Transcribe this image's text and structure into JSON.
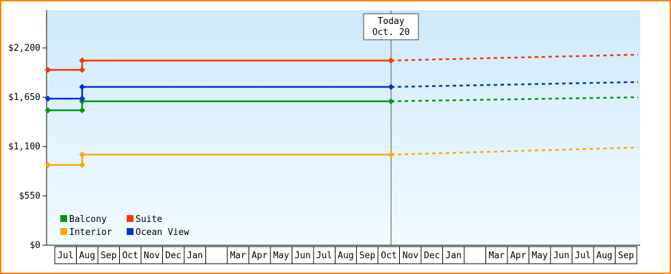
{
  "style": {
    "border_color": "#ff8000",
    "plot_bg_top": "#cfe9fb",
    "plot_bg_bottom": "#f1fbff",
    "axis_color": "#000000",
    "today_line_color": "#555555",
    "box_border_color": "#444444",
    "cell_fill": "#ffffff",
    "text_color": "#000000"
  },
  "chart_data": {
    "type": "line",
    "title": "",
    "xlabel": "",
    "ylabel": "",
    "grid": "off",
    "legend_position": "bottom-left",
    "y_axis": {
      "max_value": 2620,
      "ticks": [
        {
          "value": 0,
          "label": "$0"
        },
        {
          "value": 550,
          "label": "$550"
        },
        {
          "value": 1100,
          "label": "$1,100"
        },
        {
          "value": 1650,
          "label": "$1,650"
        },
        {
          "value": 2200,
          "label": "$2,200"
        }
      ]
    },
    "x_axis": {
      "month_cells": [
        "Jul",
        "Aug",
        "Sep",
        "Oct",
        "Nov",
        "Dec",
        "Jan",
        "",
        "Mar",
        "Apr",
        "May",
        "Jun",
        "Jul",
        "Aug",
        "Sep",
        "Oct",
        "Nov",
        "Dec",
        "Jan",
        "",
        "Mar",
        "Apr",
        "May",
        "Jun",
        "Jul",
        "Aug",
        "Sep"
      ]
    },
    "today": {
      "label_line1": "Today",
      "label_line2": "Oct. 20",
      "month_index": 15,
      "month_fraction": 0.6
    },
    "price_step_month_position": 1.27,
    "series": [
      {
        "name": "Balcony",
        "color": "#009900",
        "start_value": 1505,
        "current_value": 1605,
        "forecast_end_value": 1650
      },
      {
        "name": "Suite",
        "color": "#ff3300",
        "start_value": 1955,
        "current_value": 2060,
        "forecast_end_value": 2125
      },
      {
        "name": "Interior",
        "color": "#ffaa00",
        "start_value": 895,
        "current_value": 1010,
        "forecast_end_value": 1090
      },
      {
        "name": "Ocean View",
        "color": "#0033cc",
        "start_value": 1635,
        "current_value": 1765,
        "forecast_end_value": 1820
      }
    ]
  }
}
